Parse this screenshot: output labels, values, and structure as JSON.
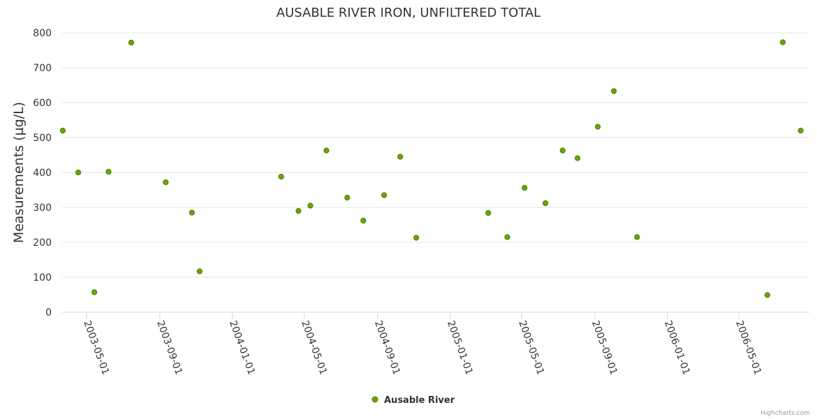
{
  "chart_data": {
    "type": "scatter",
    "title": "AUSABLE RIVER IRON, UNFILTERED TOTAL",
    "ylabel": "Measurements (µg/L)",
    "xlabel": "",
    "x_axis_type": "date",
    "ylim": [
      0,
      800
    ],
    "yticks": [
      0,
      100,
      200,
      300,
      400,
      500,
      600,
      700,
      800
    ],
    "xticks": [
      "2003-05-01",
      "2003-09-01",
      "2004-01-01",
      "2004-05-01",
      "2004-09-01",
      "2005-01-01",
      "2005-05-01",
      "2005-09-01",
      "2006-01-01",
      "2006-05-01"
    ],
    "grid": "horizontal",
    "legend_position": "bottom-center",
    "series": [
      {
        "name": "Ausable River",
        "color": "#6aa500",
        "points": [
          {
            "x": "2003-03-22",
            "y": 520
          },
          {
            "x": "2003-04-17",
            "y": 400
          },
          {
            "x": "2003-05-14",
            "y": 57
          },
          {
            "x": "2003-06-07",
            "y": 402
          },
          {
            "x": "2003-07-15",
            "y": 772
          },
          {
            "x": "2003-09-11",
            "y": 372
          },
          {
            "x": "2003-10-25",
            "y": 285
          },
          {
            "x": "2003-11-07",
            "y": 117
          },
          {
            "x": "2004-03-23",
            "y": 388
          },
          {
            "x": "2004-04-21",
            "y": 290
          },
          {
            "x": "2004-05-11",
            "y": 305
          },
          {
            "x": "2004-06-07",
            "y": 463
          },
          {
            "x": "2004-07-12",
            "y": 328
          },
          {
            "x": "2004-08-08",
            "y": 262
          },
          {
            "x": "2004-09-12",
            "y": 335
          },
          {
            "x": "2004-10-09",
            "y": 445
          },
          {
            "x": "2004-11-05",
            "y": 213
          },
          {
            "x": "2005-03-06",
            "y": 284
          },
          {
            "x": "2005-04-07",
            "y": 215
          },
          {
            "x": "2005-05-06",
            "y": 356
          },
          {
            "x": "2005-06-10",
            "y": 312
          },
          {
            "x": "2005-07-09",
            "y": 463
          },
          {
            "x": "2005-08-03",
            "y": 441
          },
          {
            "x": "2005-09-06",
            "y": 531
          },
          {
            "x": "2005-10-03",
            "y": 633
          },
          {
            "x": "2005-11-11",
            "y": 215
          },
          {
            "x": "2006-06-18",
            "y": 49
          },
          {
            "x": "2006-07-14",
            "y": 773
          },
          {
            "x": "2006-08-13",
            "y": 520
          }
        ]
      }
    ]
  },
  "credits": "Highcharts.com"
}
